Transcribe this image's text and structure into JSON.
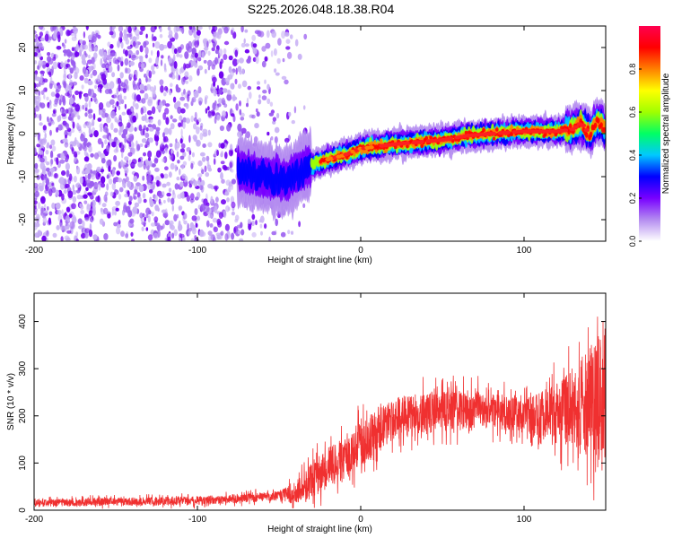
{
  "figure": {
    "title": "S225.2026.048.18.38.R04"
  },
  "chart_data": [
    {
      "type": "heatmap",
      "xlabel": "Height of straight line (km)",
      "ylabel": "Frequency (Hz)",
      "xlim": [
        -200,
        150
      ],
      "ylim": [
        -25,
        25
      ],
      "xticks": [
        -200,
        -100,
        0,
        100
      ],
      "yticks": [
        -20,
        -10,
        0,
        10,
        20
      ],
      "ridge": {
        "x": [
          -75,
          -60,
          -45,
          -35,
          -20,
          -10,
          0,
          10,
          20,
          35,
          50,
          65,
          80,
          100,
          120,
          130,
          135,
          140,
          145,
          150
        ],
        "y": [
          -8.5,
          -10,
          -11,
          -8,
          -6,
          -5,
          -3.5,
          -3,
          -2.5,
          -2,
          -1.5,
          -0.5,
          0,
          0.5,
          0.5,
          1,
          2.5,
          0,
          3,
          1
        ]
      },
      "colorbar": {
        "label": "Normalized spectral amplitude",
        "range": [
          0,
          1
        ],
        "ticks": [
          0.0,
          0.2,
          0.4,
          0.6,
          0.8
        ],
        "tick_labels": [
          "0.0",
          "0.2",
          "0.4",
          "0.6",
          "0.8"
        ],
        "colors": [
          "#ffffff",
          "#b48cf0",
          "#7800ff",
          "#0000ff",
          "#00c8ff",
          "#00ff64",
          "#a0ff00",
          "#ffff00",
          "#ff8000",
          "#ff0000",
          "#ff0050"
        ]
      }
    },
    {
      "type": "line",
      "xlabel": "Height of straight line (km)",
      "ylabel": "SNR (10 * v/v)",
      "xlim": [
        -200,
        150
      ],
      "ylim": [
        0,
        460
      ],
      "xticks": [
        -200,
        -100,
        0,
        100
      ],
      "yticks": [
        0,
        100,
        200,
        300,
        400
      ],
      "color": "#f03030",
      "trend": {
        "x": [
          -200,
          -150,
          -100,
          -60,
          -40,
          -30,
          -20,
          -10,
          0,
          10,
          20,
          30,
          50,
          70,
          90,
          110,
          125,
          135,
          145,
          150
        ],
        "y": [
          15,
          18,
          20,
          28,
          35,
          60,
          90,
          110,
          140,
          170,
          190,
          200,
          210,
          215,
          205,
          200,
          210,
          220,
          240,
          250
        ]
      },
      "noise": {
        "x": [
          -200,
          -50,
          -30,
          0,
          100,
          130,
          150
        ],
        "y": [
          8,
          10,
          40,
          50,
          35,
          80,
          150
        ]
      }
    }
  ]
}
